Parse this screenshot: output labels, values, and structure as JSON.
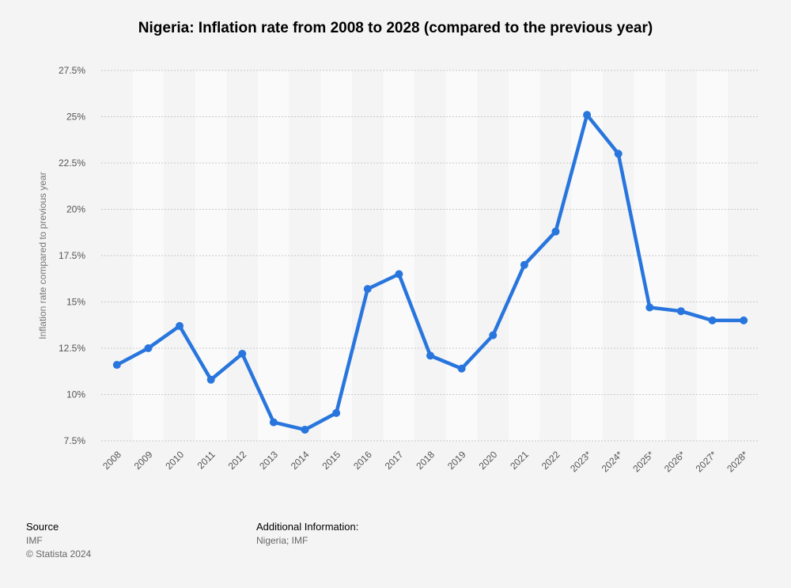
{
  "chart_data": {
    "type": "line",
    "title": "Nigeria: Inflation rate from 2008 to 2028 (compared to the previous year)",
    "xlabel": "",
    "ylabel": "Inflation rate compared to previous year",
    "categories": [
      "2008",
      "2009",
      "2010",
      "2011",
      "2012",
      "2013",
      "2014",
      "2015",
      "2016",
      "2017",
      "2018",
      "2019",
      "2020",
      "2021",
      "2022",
      "2023*",
      "2024*",
      "2025*",
      "2026*",
      "2027*",
      "2028*"
    ],
    "values": [
      11.6,
      12.5,
      13.7,
      10.8,
      12.2,
      8.5,
      8.1,
      9.0,
      15.7,
      16.5,
      12.1,
      11.4,
      13.2,
      17.0,
      18.8,
      25.1,
      23.0,
      14.7,
      14.5,
      14.0,
      14.0
    ],
    "ylim": [
      7.5,
      27.5
    ],
    "yticks": [
      7.5,
      10,
      12.5,
      15,
      17.5,
      20,
      22.5,
      25,
      27.5
    ],
    "ytick_labels": [
      "7.5%",
      "10%",
      "12.5%",
      "15%",
      "17.5%",
      "20%",
      "22.5%",
      "25%",
      "27.5%"
    ],
    "grid": true,
    "line_color": "#2876dd"
  },
  "footer": {
    "source_label": "Source",
    "source_value": "IMF",
    "copyright": "© Statista 2024",
    "additional_label": "Additional Information:",
    "additional_value": "Nigeria; IMF"
  }
}
